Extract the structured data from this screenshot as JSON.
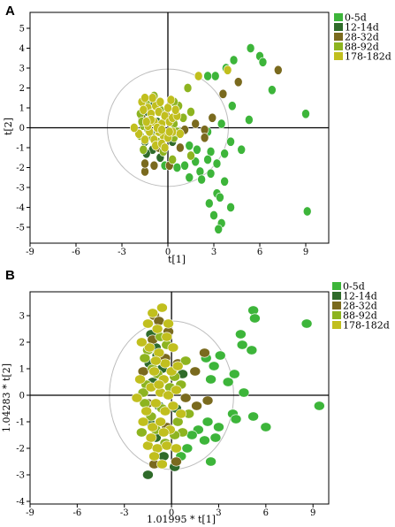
{
  "chart_data": [
    {
      "type": "scatter",
      "panel": "A",
      "xlabel": "t[1]",
      "ylabel": "t[2]",
      "xlim": [
        -9,
        10.5
      ],
      "ylim": [
        -5.8,
        5.8
      ],
      "xticks": [
        -9,
        -6,
        -3,
        0,
        3,
        6,
        9
      ],
      "yticks": [
        -5,
        -4,
        -3,
        -2,
        -1,
        0,
        1,
        2,
        3,
        4,
        5
      ],
      "ellipse": {
        "rx": 3.95,
        "ry": 2.95
      },
      "legend_position": "top-right",
      "series": [
        {
          "name": "0-5d",
          "color": "#3db53a",
          "points": [
            [
              5.4,
              4.0
            ],
            [
              6.0,
              3.6
            ],
            [
              6.2,
              3.3
            ],
            [
              4.3,
              3.4
            ],
            [
              3.8,
              3.0
            ],
            [
              2.6,
              2.6
            ],
            [
              3.1,
              2.6
            ],
            [
              6.8,
              1.9
            ],
            [
              4.2,
              1.1
            ],
            [
              5.3,
              0.4
            ],
            [
              9.0,
              0.7
            ],
            [
              3.5,
              0.2
            ],
            [
              2.6,
              -0.2
            ],
            [
              4.1,
              -0.7
            ],
            [
              4.8,
              -1.1
            ],
            [
              2.8,
              -1.2
            ],
            [
              3.7,
              -1.3
            ],
            [
              1.4,
              -0.9
            ],
            [
              1.9,
              -1.1
            ],
            [
              1.8,
              -1.7
            ],
            [
              2.6,
              -1.6
            ],
            [
              3.2,
              -1.8
            ],
            [
              1.1,
              -1.9
            ],
            [
              2.1,
              -2.2
            ],
            [
              2.8,
              -2.3
            ],
            [
              3.7,
              -2.7
            ],
            [
              2.2,
              -2.6
            ],
            [
              1.4,
              -2.5
            ],
            [
              3.2,
              -3.3
            ],
            [
              3.4,
              -3.5
            ],
            [
              2.7,
              -3.8
            ],
            [
              4.1,
              -4.0
            ],
            [
              3.0,
              -4.4
            ],
            [
              3.5,
              -4.8
            ],
            [
              3.3,
              -5.1
            ],
            [
              9.1,
              -4.2
            ],
            [
              -0.2,
              -1.9
            ],
            [
              0.6,
              -2.0
            ]
          ]
        },
        {
          "name": "12-14d",
          "color": "#2f6b2a",
          "points": [
            [
              -1.2,
              1.4
            ],
            [
              -0.9,
              1.2
            ],
            [
              -1.5,
              0.8
            ],
            [
              -0.7,
              0.3
            ],
            [
              -1.1,
              -0.3
            ],
            [
              -1.5,
              -0.7
            ],
            [
              -1.0,
              -1.1
            ],
            [
              -0.5,
              -1.5
            ],
            [
              0.3,
              -0.7
            ],
            [
              0.9,
              -0.2
            ],
            [
              1.0,
              0.5
            ],
            [
              0.6,
              1.1
            ],
            [
              -1.4,
              -1.3
            ]
          ]
        },
        {
          "name": "28-32d",
          "color": "#7a6a1e",
          "points": [
            [
              7.2,
              2.9
            ],
            [
              4.6,
              2.3
            ],
            [
              3.6,
              1.7
            ],
            [
              -1.5,
              -2.2
            ],
            [
              -0.9,
              -1.9
            ],
            [
              0.1,
              -1.9
            ],
            [
              -1.5,
              -1.8
            ],
            [
              2.4,
              -0.1
            ],
            [
              2.4,
              -0.5
            ],
            [
              1.8,
              0.2
            ],
            [
              2.9,
              0.5
            ],
            [
              0.8,
              -1.0
            ],
            [
              1.1,
              -0.1
            ],
            [
              -0.1,
              0.6
            ],
            [
              -0.6,
              -1.0
            ],
            [
              -1.7,
              0.5
            ],
            [
              -0.2,
              -0.3
            ]
          ]
        },
        {
          "name": "88-92d",
          "color": "#8db420",
          "points": [
            [
              -1.8,
              0.7
            ],
            [
              -1.6,
              0.1
            ],
            [
              -1.8,
              -0.4
            ],
            [
              -1.6,
              -1.1
            ],
            [
              -1.2,
              0.4
            ],
            [
              -1.0,
              -0.5
            ],
            [
              -0.5,
              0.9
            ],
            [
              -0.3,
              -1.2
            ],
            [
              0.4,
              0.2
            ],
            [
              0.4,
              -0.5
            ],
            [
              0.7,
              1.1
            ],
            [
              0.4,
              1.3
            ],
            [
              1.3,
              2.0
            ],
            [
              -0.9,
              1.6
            ],
            [
              0.3,
              -1.6
            ],
            [
              1.5,
              -1.4
            ],
            [
              1.0,
              0.5
            ],
            [
              -1.3,
              -0.1
            ],
            [
              -1.7,
              0.3
            ],
            [
              0.0,
              0.4
            ],
            [
              -0.7,
              -0.7
            ],
            [
              -1.4,
              1.2
            ],
            [
              0.6,
              -0.2
            ],
            [
              1.5,
              0.8
            ]
          ]
        },
        {
          "name": "178-182d",
          "color": "#c1bf1e",
          "points": [
            [
              2.0,
              2.6
            ],
            [
              3.9,
              2.9
            ],
            [
              -1.7,
              1.3
            ],
            [
              -1.5,
              1.5
            ],
            [
              -1.3,
              1.0
            ],
            [
              -1.1,
              0.7
            ],
            [
              -0.9,
              0.3
            ],
            [
              -0.8,
              1.1
            ],
            [
              -0.6,
              0.8
            ],
            [
              -0.4,
              0.2
            ],
            [
              -0.2,
              0.6
            ],
            [
              0.0,
              1.0
            ],
            [
              0.1,
              0.3
            ],
            [
              0.3,
              -0.2
            ],
            [
              -0.3,
              -0.4
            ],
            [
              -0.6,
              -0.2
            ],
            [
              -0.9,
              -0.6
            ],
            [
              -1.2,
              -0.2
            ],
            [
              -1.5,
              -0.6
            ],
            [
              -1.3,
              0.1
            ],
            [
              -0.8,
              -0.9
            ],
            [
              -0.4,
              -0.8
            ],
            [
              0.0,
              -0.5
            ],
            [
              0.3,
              0.5
            ],
            [
              0.6,
              0.6
            ],
            [
              0.8,
              -0.3
            ],
            [
              -1.6,
              0.9
            ],
            [
              -1.0,
              1.5
            ],
            [
              -0.5,
              1.3
            ],
            [
              0.2,
              1.4
            ],
            [
              -0.2,
              -1.0
            ],
            [
              -0.7,
              0.0
            ],
            [
              -1.1,
              0.4
            ],
            [
              0.5,
              0.9
            ],
            [
              -1.9,
              -0.3
            ],
            [
              -2.2,
              0.0
            ],
            [
              -1.4,
              0.3
            ],
            [
              0.1,
              -0.2
            ],
            [
              -0.4,
              -0.1
            ]
          ]
        }
      ]
    },
    {
      "type": "scatter",
      "panel": "B",
      "xlabel": "1.01995 * t[1]",
      "ylabel": "1.04283 * t[2]",
      "xlim": [
        -9,
        10
      ],
      "ylim": [
        -4.1,
        3.9
      ],
      "xticks": [
        -9,
        -6,
        -3,
        0,
        3,
        6,
        9
      ],
      "yticks": [
        -4,
        -3,
        -2,
        -1,
        0,
        1,
        2,
        3
      ],
      "ellipse": {
        "rx": 3.95,
        "ry": 2.8
      },
      "legend_position": "top-right",
      "series": [
        {
          "name": "0-5d",
          "color": "#3db53a",
          "points": [
            [
              5.2,
              3.2
            ],
            [
              5.3,
              2.9
            ],
            [
              8.6,
              2.7
            ],
            [
              4.4,
              2.3
            ],
            [
              4.5,
              1.9
            ],
            [
              5.1,
              1.7
            ],
            [
              2.2,
              1.4
            ],
            [
              3.1,
              1.5
            ],
            [
              2.7,
              1.1
            ],
            [
              4.0,
              0.8
            ],
            [
              2.5,
              0.6
            ],
            [
              3.6,
              0.5
            ],
            [
              4.6,
              0.1
            ],
            [
              9.4,
              -0.4
            ],
            [
              3.9,
              -0.7
            ],
            [
              5.2,
              -0.8
            ],
            [
              4.1,
              -0.9
            ],
            [
              6.0,
              -1.2
            ],
            [
              3.0,
              -1.2
            ],
            [
              1.7,
              -1.3
            ],
            [
              2.3,
              -1.0
            ],
            [
              2.8,
              -1.6
            ],
            [
              1.3,
              -1.5
            ],
            [
              2.1,
              -1.7
            ],
            [
              0.6,
              -2.3
            ],
            [
              1.0,
              -2.0
            ],
            [
              2.5,
              -2.5
            ]
          ]
        },
        {
          "name": "12-14d",
          "color": "#2f6b2a",
          "points": [
            [
              -1.3,
              2.3
            ],
            [
              -1.0,
              1.8
            ],
            [
              -0.9,
              1.5
            ],
            [
              -1.4,
              1.2
            ],
            [
              -0.6,
              1.0
            ],
            [
              -1.2,
              0.5
            ],
            [
              -0.8,
              -0.4
            ],
            [
              -1.4,
              -1.0
            ],
            [
              -1.0,
              -1.6
            ],
            [
              -0.5,
              -2.3
            ],
            [
              0.3,
              -0.5
            ],
            [
              0.7,
              0.8
            ],
            [
              -1.5,
              -3.0
            ],
            [
              0.2,
              -2.7
            ]
          ]
        },
        {
          "name": "28-32d",
          "color": "#7a6a1e",
          "points": [
            [
              -1.1,
              3.0
            ],
            [
              -0.8,
              2.8
            ],
            [
              -0.2,
              2.4
            ],
            [
              -1.2,
              2.1
            ],
            [
              -1.1,
              -2.6
            ],
            [
              0.3,
              -2.5
            ],
            [
              2.1,
              1.6
            ],
            [
              1.5,
              0.9
            ],
            [
              2.3,
              -0.2
            ],
            [
              1.6,
              -0.4
            ],
            [
              -1.8,
              0.9
            ],
            [
              -0.4,
              1.4
            ],
            [
              0.4,
              1.2
            ],
            [
              -0.3,
              -1.2
            ],
            [
              -1.5,
              -0.3
            ],
            [
              0.9,
              -0.1
            ]
          ]
        },
        {
          "name": "88-92d",
          "color": "#8db420",
          "points": [
            [
              -1.5,
              1.7
            ],
            [
              -1.2,
              1.0
            ],
            [
              -1.6,
              0.4
            ],
            [
              -1.7,
              -0.3
            ],
            [
              -1.3,
              -0.8
            ],
            [
              -0.9,
              0.8
            ],
            [
              -0.6,
              -0.5
            ],
            [
              0.2,
              0.7
            ],
            [
              0.4,
              -1.0
            ],
            [
              0.7,
              -1.4
            ],
            [
              -0.3,
              1.9
            ],
            [
              -1.7,
              1.4
            ],
            [
              -1.9,
              -1.4
            ],
            [
              -0.4,
              -1.8
            ],
            [
              0.6,
              0.4
            ],
            [
              1.1,
              -0.7
            ],
            [
              -1.0,
              -1.3
            ],
            [
              -0.1,
              0.3
            ],
            [
              0.9,
              1.3
            ],
            [
              -1.8,
              0.1
            ],
            [
              0.2,
              -1.5
            ],
            [
              -0.7,
              2.2
            ]
          ]
        },
        {
          "name": "178-182d",
          "color": "#c1bf1e",
          "points": [
            [
              -1.2,
              3.1
            ],
            [
              -0.6,
              3.3
            ],
            [
              -1.5,
              2.7
            ],
            [
              -0.9,
              2.5
            ],
            [
              -0.3,
              2.2
            ],
            [
              -1.4,
              1.8
            ],
            [
              -0.8,
              1.6
            ],
            [
              -0.4,
              1.2
            ],
            [
              0.1,
              1.8
            ],
            [
              -1.1,
              0.9
            ],
            [
              -0.5,
              0.6
            ],
            [
              0.0,
              0.9
            ],
            [
              -1.3,
              0.3
            ],
            [
              -0.7,
              0.1
            ],
            [
              -0.2,
              0.0
            ],
            [
              0.3,
              0.2
            ],
            [
              -1.6,
              -0.6
            ],
            [
              -1.0,
              -0.3
            ],
            [
              -0.4,
              -0.6
            ],
            [
              0.1,
              -0.4
            ],
            [
              -1.2,
              -1.2
            ],
            [
              -0.7,
              -1.0
            ],
            [
              -0.1,
              -1.3
            ],
            [
              -1.5,
              -1.9
            ],
            [
              -0.9,
              -2.0
            ],
            [
              -0.3,
              -1.9
            ],
            [
              -1.1,
              -2.3
            ],
            [
              -0.6,
              -2.6
            ],
            [
              -2.2,
              -0.1
            ],
            [
              -2.0,
              0.6
            ],
            [
              0.6,
              -0.7
            ],
            [
              -1.8,
              -1.0
            ],
            [
              -0.2,
              2.7
            ],
            [
              -0.8,
              0.4
            ],
            [
              -1.9,
              2.0
            ],
            [
              0.3,
              -2.0
            ],
            [
              -1.3,
              -1.6
            ],
            [
              0.4,
              1.1
            ],
            [
              -0.5,
              -1.4
            ],
            [
              -1.0,
              1.3
            ]
          ]
        }
      ]
    }
  ]
}
